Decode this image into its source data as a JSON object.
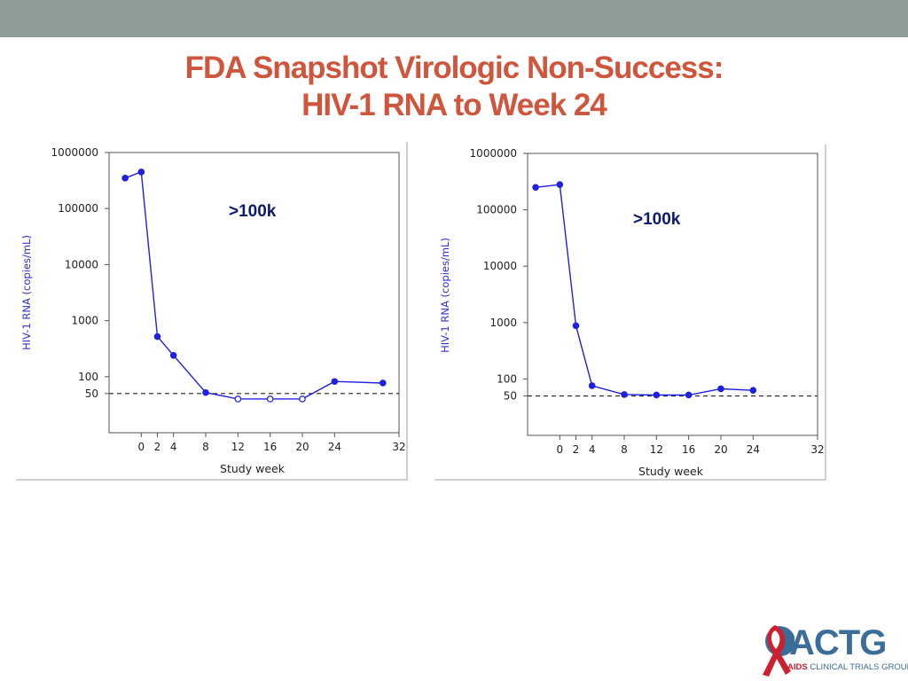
{
  "slide": {
    "title_line1": "FDA Snapshot Virologic Non-Success:",
    "title_line2": "HIV-1 RNA to Week 24"
  },
  "colors": {
    "title": "#d0553d",
    "top_bar": "#8e9e96",
    "series": "#2020e0",
    "ylabel": "#3030d0",
    "annotation": "#0d1b6e"
  },
  "logo": {
    "name": "ACTG",
    "subtitle_aids": "AIDS",
    "subtitle_rest": "CLINICAL TRIALS GROUP",
    "icon": "red-ribbon-globe-icon"
  },
  "chart_data": [
    {
      "type": "line",
      "annotation": ">100k",
      "xlabel": "Study week",
      "ylabel": "HIV-1 RNA (copies/mL)",
      "y_scale": "log",
      "xlim": [
        -4,
        32
      ],
      "ylim": [
        10,
        1000000
      ],
      "x_ticks": [
        0,
        2,
        4,
        8,
        12,
        16,
        20,
        24,
        32
      ],
      "y_ticks": [
        1000000,
        100000,
        10000,
        1000,
        100,
        50
      ],
      "y_tick_labels": [
        "1000000",
        "100000",
        "10000",
        "1000",
        "100",
        "50"
      ],
      "reference_line": 50,
      "series": [
        {
          "x": [
            -2,
            0,
            2,
            4,
            8,
            12,
            16,
            20,
            24,
            30
          ],
          "y": [
            350000,
            450000,
            520,
            240,
            52,
            40,
            40,
            40,
            82,
            77
          ],
          "hollow": [
            false,
            false,
            false,
            false,
            false,
            true,
            true,
            true,
            false,
            false
          ]
        }
      ]
    },
    {
      "type": "line",
      "annotation": ">100k",
      "xlabel": "Study week",
      "ylabel": "HIV-1 RNA (copies/mL)",
      "y_scale": "log",
      "xlim": [
        -4,
        32
      ],
      "ylim": [
        10,
        1000000
      ],
      "x_ticks": [
        0,
        2,
        4,
        8,
        12,
        16,
        20,
        24,
        32
      ],
      "y_ticks": [
        1000000,
        100000,
        10000,
        1000,
        100,
        50
      ],
      "y_tick_labels": [
        "1000000",
        "100000",
        "10000",
        "1000",
        "100",
        "50"
      ],
      "reference_line": 50,
      "series": [
        {
          "x": [
            -3,
            0,
            2,
            4,
            8,
            12,
            16,
            20,
            24
          ],
          "y": [
            250000,
            280000,
            880,
            76,
            53,
            52,
            52,
            67,
            63
          ],
          "hollow": [
            false,
            false,
            false,
            false,
            false,
            false,
            false,
            false,
            false
          ]
        }
      ]
    }
  ]
}
